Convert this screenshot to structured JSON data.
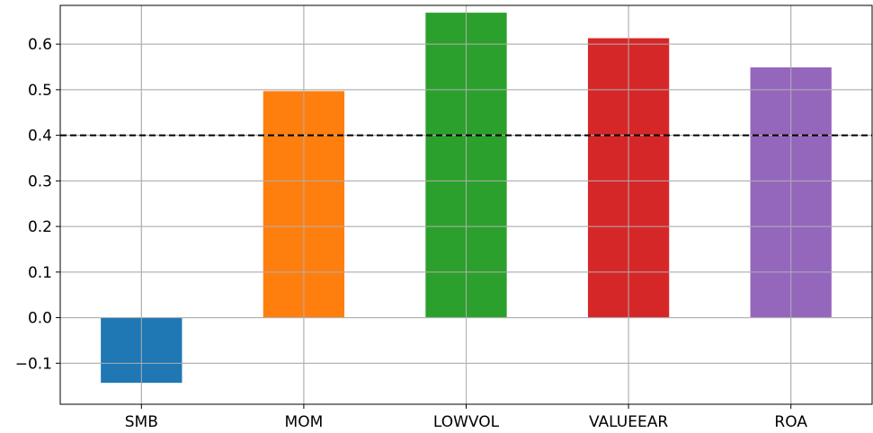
{
  "chart_data": {
    "type": "bar",
    "title": "",
    "xlabel": "",
    "ylabel": "",
    "categories": [
      "SMB",
      "MOM",
      "LOWVOL",
      "VALUEEAR",
      "ROA"
    ],
    "values": [
      -0.143,
      0.497,
      0.669,
      0.613,
      0.549
    ],
    "colors": [
      "#1f77b4",
      "#ff7f0e",
      "#2ca02c",
      "#d62728",
      "#9467bd"
    ],
    "ylim": [
      -0.19,
      0.685
    ],
    "yticks": [
      -0.1,
      0.0,
      0.1,
      0.2,
      0.3,
      0.4,
      0.5,
      0.6
    ],
    "ytick_labels": [
      "−0.1",
      "0.0",
      "0.1",
      "0.2",
      "0.3",
      "0.4",
      "0.5",
      "0.6"
    ],
    "grid": true,
    "reference_line": {
      "y": 0.4,
      "style": "dashed",
      "color": "#000000"
    }
  }
}
